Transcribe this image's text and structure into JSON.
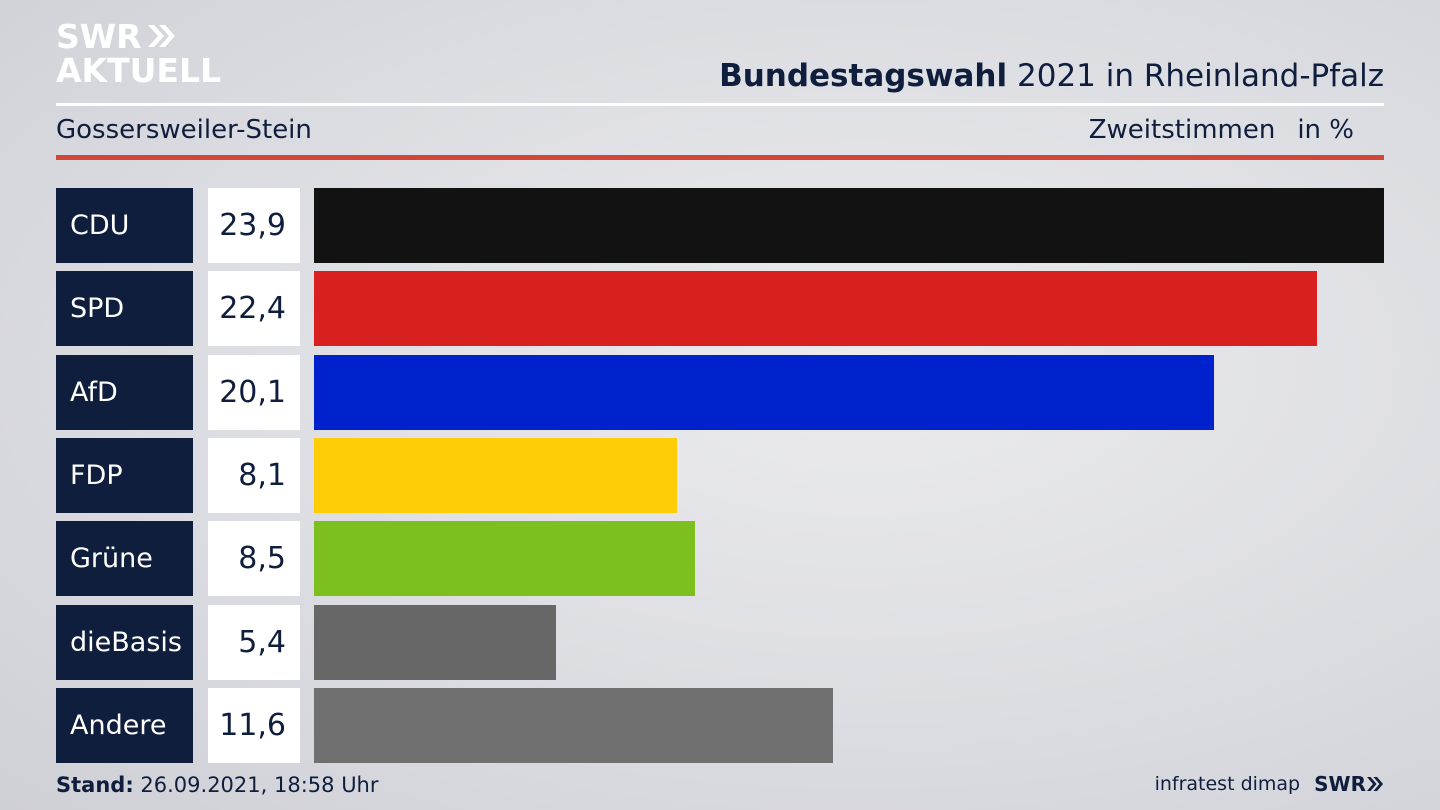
{
  "brand": {
    "line1": "SWR",
    "line2": "AKTUELL"
  },
  "header": {
    "title_bold": "Bundestagswahl",
    "title_rest": "2021 in Rheinland-Pfalz",
    "location": "Gossersweiler-Stein",
    "measure": "Zweitstimmen",
    "unit": "in %"
  },
  "chart_data": {
    "type": "bar",
    "orientation": "horizontal",
    "categories": [
      "CDU",
      "SPD",
      "AfD",
      "FDP",
      "Grüne",
      "dieBasis",
      "Andere"
    ],
    "values": [
      23.9,
      22.4,
      20.1,
      8.1,
      8.5,
      5.4,
      11.6
    ],
    "value_labels": [
      "23,9",
      "22,4",
      "20,1",
      "8,1",
      "8,5",
      "5,4",
      "11,6"
    ],
    "colors": [
      "#121212",
      "#d82020",
      "#0022cc",
      "#ffcc08",
      "#7cbf1f",
      "#676767",
      "#707071"
    ]
  },
  "footer": {
    "stand_label": "Stand:",
    "stand_value": "26.09.2021, 18:58 Uhr",
    "source": "infratest dimap",
    "logo": "SWR"
  }
}
